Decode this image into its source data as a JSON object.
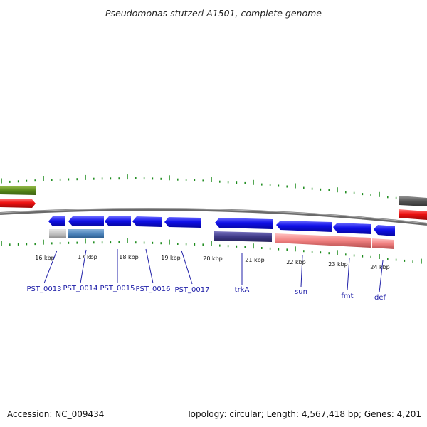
{
  "title": "Pseudomonas stutzeri A1501, complete genome",
  "footer": {
    "accession": "Accession: NC_009434",
    "topology": "Topology: circular; Length: 4,567,418 bp; Genes: 4,201"
  },
  "kbp_labels": [
    "16 kbp",
    "17 kbp",
    "18 kbp",
    "19 kbp",
    "20 kbp",
    "21 kbp",
    "22 kbp",
    "23 kbp",
    "24 kbp"
  ],
  "gene_labels": [
    "PST_0013",
    "PST_0014",
    "PST_0015",
    "PST_0016",
    "PST_0017",
    "trkA",
    "sun",
    "fmt",
    "def"
  ],
  "colors": {
    "tick": "#1a8a1a",
    "backbone": "#777777",
    "gene_arrow": "#1010e8",
    "label": "#1a1aa6",
    "green": "#5a8a1a",
    "red": "#ee1111",
    "dark_gray": "#555555",
    "light_gray": "#bbbbbb",
    "steel_blue": "#4a80b8",
    "dark_purple": "#3f3a88",
    "salmon": "#f08080"
  }
}
